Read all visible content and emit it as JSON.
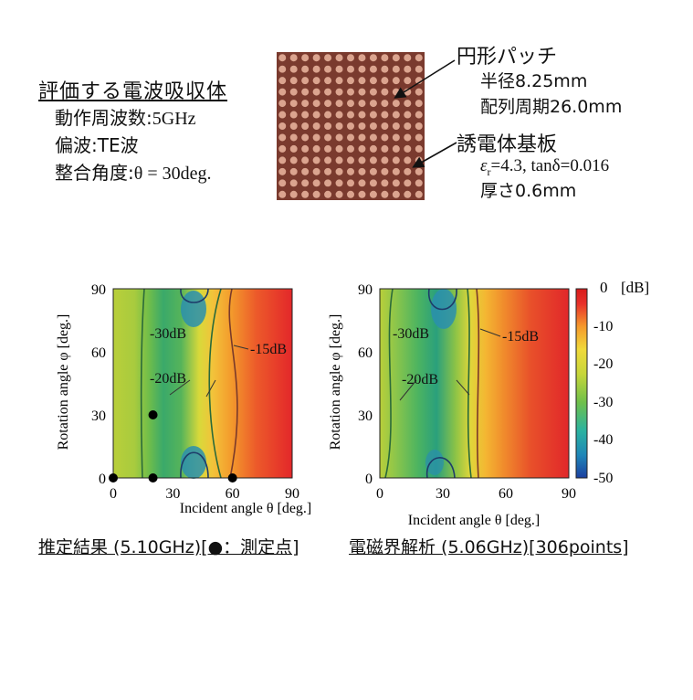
{
  "absorber": {
    "title": "評価する電波吸収体",
    "frequency_label": "動作周波数:",
    "frequency_value": "5GHz",
    "polarization_label": "偏波:",
    "polarization_value": "TE波",
    "angle_label": "整合角度:",
    "angle_value": "θ = 30deg."
  },
  "patch": {
    "title": "円形パッチ",
    "radius": "半径8.25mm",
    "period": "配列周期26.0mm"
  },
  "substrate": {
    "title": "誘電体基板",
    "epsilon_label": "ε",
    "epsilon_sub": "r",
    "epsilon_value": "=4.3, tanδ=0.016",
    "thickness": "厚さ0.6mm"
  },
  "photo": {
    "grid_rows": 13,
    "grid_cols": 13,
    "board_color": "#7a3a2e",
    "dot_color": "#e6b09a"
  },
  "chart_data": [
    {
      "type": "heatmap",
      "caption": "推定結果 (5.10GHz)[●：測定点]",
      "xlabel": "Incident angle θ [deg.]",
      "ylabel": "Rotation angle φ [deg.]",
      "xlim": [
        0,
        90
      ],
      "ylim": [
        0,
        90
      ],
      "xticks": [
        0,
        30,
        60,
        90
      ],
      "yticks": [
        0,
        30,
        60,
        90
      ],
      "contour_labels": [
        "-30dB",
        "-20dB",
        "-15dB"
      ],
      "measurement_points": [
        {
          "theta": 0,
          "phi": 0
        },
        {
          "theta": 20,
          "phi": 0
        },
        {
          "theta": 60,
          "phi": 0
        },
        {
          "theta": 20,
          "phi": 30
        }
      ]
    },
    {
      "type": "heatmap",
      "caption": "電磁界解析 (5.06GHz)[306points]",
      "xlabel": "Incident angle θ [deg.]",
      "ylabel": "Rotation angle φ [deg.]",
      "xlim": [
        0,
        90
      ],
      "ylim": [
        0,
        90
      ],
      "xticks": [
        0,
        30,
        60,
        90
      ],
      "yticks": [
        0,
        30,
        60,
        90
      ],
      "contour_labels": [
        "-30dB",
        "-20dB",
        "-15dB"
      ]
    }
  ],
  "colorbar": {
    "unit": "[dB]",
    "ticks": [
      0,
      -10,
      -20,
      -30,
      -40,
      -50
    ],
    "range": [
      -50,
      0
    ],
    "stops": [
      "#1b3fa0",
      "#1f86b8",
      "#2bb3a0",
      "#6fc04a",
      "#c7d63a",
      "#f0d93a",
      "#f59a2c",
      "#e8312a",
      "#d81b1b"
    ]
  }
}
